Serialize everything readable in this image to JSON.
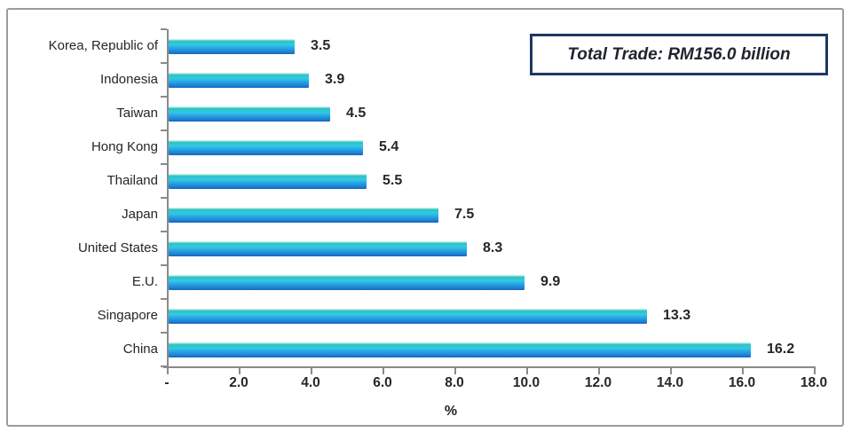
{
  "chart_data": {
    "type": "bar",
    "orientation": "horizontal",
    "categories": [
      "Korea, Republic of",
      "Indonesia",
      "Taiwan",
      "Hong Kong",
      "Thailand",
      "Japan",
      "United States",
      "E.U.",
      "Singapore",
      "China"
    ],
    "values": [
      3.5,
      3.9,
      4.5,
      5.4,
      5.5,
      7.5,
      8.3,
      9.9,
      13.3,
      16.2
    ],
    "value_labels": [
      "3.5",
      "3.9",
      "4.5",
      "5.4",
      "5.5",
      "7.5",
      "8.3",
      "9.9",
      "13.3",
      "16.2"
    ],
    "x_ticks": [
      "-",
      "2.0",
      "4.0",
      "6.0",
      "8.0",
      "10.0",
      "12.0",
      "14.0",
      "16.0",
      "18.0"
    ],
    "x_tick_values": [
      0,
      2,
      4,
      6,
      8,
      10,
      12,
      14,
      16,
      18
    ],
    "xlim": [
      0,
      18
    ],
    "xlabel": "%",
    "annotation": "Total Trade: RM156.0 billion",
    "legend": "none",
    "grid": "off",
    "bar_gradient": [
      "#e9fbfa",
      "#2bc3bd",
      "#33c9e6",
      "#27a3e2",
      "#1e7fd2",
      "#1565b8"
    ],
    "axis_color": "#8a8a8a",
    "text_color": "#262626",
    "annotation_border_color": "#1f3864"
  }
}
